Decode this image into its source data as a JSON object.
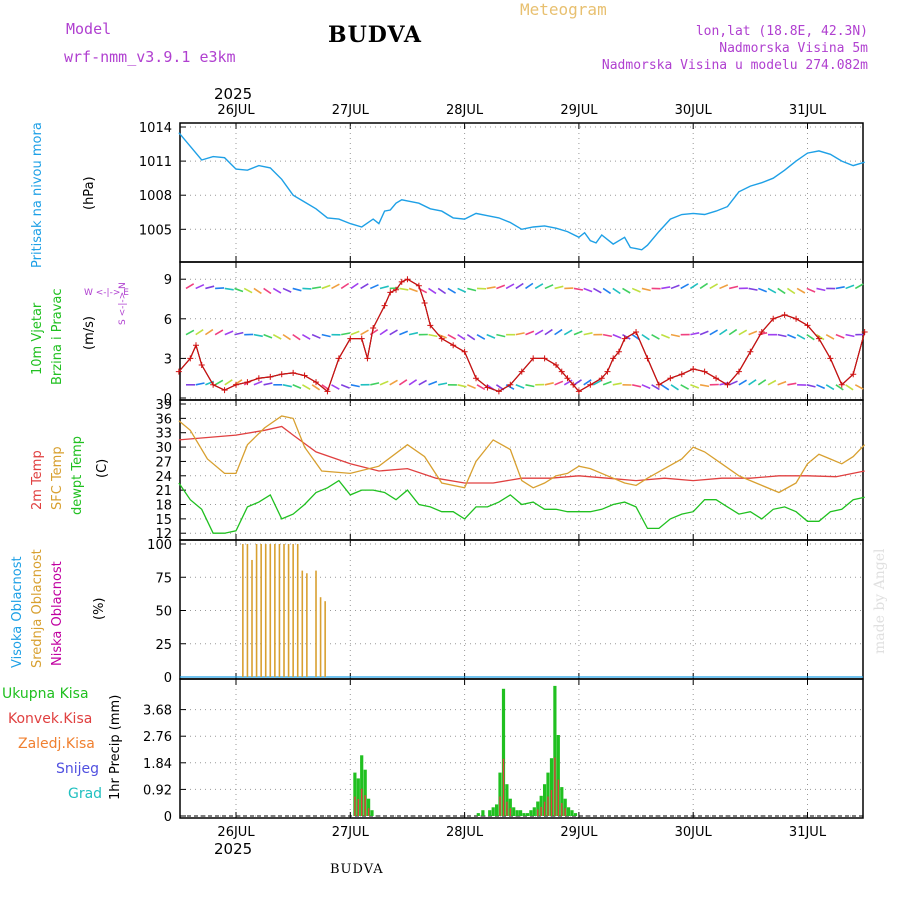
{
  "header": {
    "model_label": "Model",
    "model_name": "wrf-nmm_v3.9.1 e3km",
    "title": "BUDVA",
    "meteogram": "Meteogram",
    "lonlat": "lon,lat (18.8E, 42.3N)",
    "elev": "Nadmorska Visina 5m",
    "elev_model": "Nadmorska Visina u modelu 274.082m",
    "year_top": "2025",
    "year_bottom": "2025",
    "footer_station": "BUDVA",
    "watermark": "made by Angel"
  },
  "colors": {
    "pressure": "#1ea0e6",
    "temp2m": "#e04040",
    "sfc": "#d8a030",
    "dewpt": "#20c020",
    "wind": "#d01010",
    "high": "#1ea0e6",
    "mid": "#d8a030",
    "low": "#c000a0",
    "total": "#20c020",
    "conv": "#e04040",
    "frozen": "#f08030",
    "snow": "#5050e0",
    "grad": "#20c0c0"
  },
  "labels": {
    "p1_a": "Pritisak na nivou mora",
    "p1_b": "(hPa)",
    "p2_a": "10m Vjetar",
    "p2_b": "Brzina i Pravac",
    "p2_c": "(m/s)",
    "p2_compass": "W <-|-> E",
    "p2_compass2": "S <-|-> N",
    "p3_a": "2m Temp",
    "p3_b": "SFC Temp",
    "p3_c": "dewpt Temp",
    "p3_d": "(C)",
    "p4_a": "Visoka Oblacnost",
    "p4_b": "Srednja Oblacnost",
    "p4_c": "Niska Oblacnost",
    "p4_d": "(%)",
    "p5_a": "Ukupna Kisa",
    "p5_b": "Konvek.Kisa",
    "p5_c": "Zaledj.Kisa",
    "p5_d": "Snijeg",
    "p5_e": "Grad",
    "p5_y": "1hr Precip (mm)"
  },
  "chart_data": [
    {
      "type": "line",
      "title": "Pritisak na nivou mora",
      "ylabel": "(hPa)",
      "ylim": [
        1002.3,
        1014
      ],
      "yticks": [
        1005,
        1008,
        1011,
        1014
      ],
      "x_days": [
        "26JUL",
        "27JUL",
        "28JUL",
        "29JUL",
        "30JUL",
        "31JUL"
      ],
      "series": [
        {
          "name": "pressure",
          "x": [
            0.0,
            0.1,
            0.2,
            0.3,
            0.4,
            0.5,
            0.6,
            0.7,
            0.8,
            0.9,
            1.0,
            1.1,
            1.2,
            1.3,
            1.4,
            1.5,
            1.6,
            1.7,
            1.75,
            1.8,
            1.85,
            1.9,
            1.95,
            2.0,
            2.1,
            2.2,
            2.3,
            2.4,
            2.5,
            2.6,
            2.7,
            2.8,
            2.9,
            3.0,
            3.1,
            3.2,
            3.3,
            3.4,
            3.5,
            3.55,
            3.6,
            3.65,
            3.7,
            3.8,
            3.9,
            3.95,
            4.0,
            4.05,
            4.1,
            4.2,
            4.3,
            4.4,
            4.5,
            4.6,
            4.7,
            4.8,
            4.9,
            5.0,
            5.1,
            5.2,
            5.3,
            5.4,
            5.5,
            5.6,
            5.7,
            5.8,
            5.9,
            6.0
          ],
          "values": [
            1013.5,
            1012.3,
            1011.1,
            1011.4,
            1011.3,
            1010.3,
            1010.2,
            1010.6,
            1010.4,
            1009.4,
            1008.0,
            1007.4,
            1006.8,
            1006.0,
            1005.9,
            1005.5,
            1005.2,
            1005.9,
            1005.5,
            1006.6,
            1006.7,
            1007.3,
            1007.6,
            1007.5,
            1007.3,
            1006.8,
            1006.6,
            1006.0,
            1005.9,
            1006.4,
            1006.2,
            1006.0,
            1005.6,
            1005.0,
            1005.2,
            1005.3,
            1005.1,
            1004.8,
            1004.3,
            1004.7,
            1004.0,
            1003.8,
            1004.5,
            1003.7,
            1004.3,
            1003.4,
            1003.3,
            1003.2,
            1003.6,
            1004.8,
            1005.9,
            1006.3,
            1006.4,
            1006.3,
            1006.6,
            1007.0,
            1008.3,
            1008.8,
            1009.1,
            1009.5,
            1010.2,
            1011.0,
            1011.7,
            1011.9,
            1011.6,
            1011.0,
            1010.6,
            1010.9
          ]
        }
      ]
    },
    {
      "type": "line",
      "title": "10m Vjetar Brzina i Pravac",
      "ylabel": "(m/s)",
      "ylim": [
        0,
        10
      ],
      "yticks": [
        0,
        3,
        6,
        9
      ],
      "x_days": [
        "26JUL",
        "27JUL",
        "28JUL",
        "29JUL",
        "30JUL",
        "31JUL"
      ],
      "series": [
        {
          "name": "wind_speed",
          "x": [
            0.0,
            0.1,
            0.15,
            0.2,
            0.3,
            0.4,
            0.5,
            0.6,
            0.7,
            0.8,
            0.9,
            1.0,
            1.1,
            1.2,
            1.3,
            1.4,
            1.5,
            1.6,
            1.65,
            1.7,
            1.8,
            1.85,
            1.9,
            1.95,
            2.0,
            2.1,
            2.15,
            2.2,
            2.3,
            2.4,
            2.5,
            2.6,
            2.7,
            2.8,
            2.9,
            3.0,
            3.1,
            3.2,
            3.3,
            3.35,
            3.4,
            3.45,
            3.5,
            3.6,
            3.7,
            3.75,
            3.8,
            3.85,
            3.9,
            4.0,
            4.1,
            4.2,
            4.3,
            4.4,
            4.5,
            4.6,
            4.7,
            4.8,
            4.9,
            5.0,
            5.1,
            5.2,
            5.3,
            5.4,
            5.5,
            5.6,
            5.7,
            5.8,
            5.9,
            6.0
          ],
          "values": [
            2.0,
            3.0,
            4.0,
            2.5,
            1.0,
            0.6,
            1.0,
            1.2,
            1.5,
            1.6,
            1.8,
            1.9,
            1.7,
            1.2,
            0.5,
            3.0,
            4.5,
            4.5,
            3.0,
            5.3,
            7.0,
            8.0,
            8.2,
            8.8,
            9.0,
            8.5,
            7.2,
            5.5,
            4.5,
            4.0,
            3.5,
            1.5,
            0.8,
            0.5,
            1.0,
            2.0,
            3.0,
            3.0,
            2.5,
            2.0,
            1.5,
            1.0,
            0.5,
            1.0,
            1.5,
            2.0,
            3.0,
            3.5,
            4.5,
            5.0,
            3.0,
            1.0,
            1.5,
            1.8,
            2.2,
            2.0,
            1.5,
            1.0,
            2.0,
            3.5,
            5.0,
            6.0,
            6.3,
            6.0,
            5.5,
            4.5,
            3.0,
            1.0,
            1.8,
            5.0
          ]
        }
      ],
      "arrow_rows": [
        1.0,
        4.8,
        8.3
      ]
    },
    {
      "type": "line",
      "title": "2m Temp / SFC Temp / dewpt Temp",
      "ylabel": "(C)",
      "ylim": [
        11,
        39
      ],
      "yticks": [
        12,
        15,
        18,
        21,
        24,
        27,
        30,
        33,
        36,
        39
      ],
      "x_days": [
        "26JUL",
        "27JUL",
        "28JUL",
        "29JUL",
        "30JUL",
        "31JUL"
      ],
      "series": [
        {
          "name": "2m Temp",
          "x": [
            0.0,
            0.25,
            0.5,
            0.75,
            0.9,
            1.0,
            1.2,
            1.5,
            1.75,
            2.0,
            2.25,
            2.5,
            2.75,
            3.0,
            3.25,
            3.5,
            3.75,
            4.0,
            4.25,
            4.5,
            4.75,
            5.0,
            5.25,
            5.5,
            5.75,
            6.0
          ],
          "values": [
            31.5,
            32.0,
            32.5,
            33.5,
            34.3,
            32.5,
            29.0,
            26.5,
            25.0,
            25.5,
            23.5,
            22.5,
            22.5,
            23.5,
            23.5,
            24.0,
            23.5,
            23.0,
            23.5,
            23.0,
            23.5,
            23.5,
            24.0,
            24.0,
            23.8,
            25.0
          ]
        },
        {
          "name": "SFC Temp",
          "x": [
            0.0,
            0.1,
            0.25,
            0.4,
            0.5,
            0.6,
            0.75,
            0.9,
            1.0,
            1.1,
            1.25,
            1.5,
            1.75,
            2.0,
            2.15,
            2.3,
            2.5,
            2.6,
            2.75,
            2.9,
            3.0,
            3.1,
            3.2,
            3.3,
            3.4,
            3.5,
            3.6,
            3.75,
            3.9,
            4.0,
            4.1,
            4.25,
            4.4,
            4.5,
            4.6,
            4.75,
            4.9,
            5.0,
            5.1,
            5.25,
            5.4,
            5.5,
            5.6,
            5.7,
            5.8,
            5.9,
            6.0
          ],
          "values": [
            35.5,
            33.5,
            27.5,
            24.5,
            24.5,
            30.5,
            34.0,
            36.5,
            36.0,
            30.0,
            25.0,
            24.5,
            26.0,
            30.5,
            28.0,
            22.5,
            21.5,
            27.0,
            31.5,
            29.5,
            23.0,
            21.5,
            22.5,
            24.0,
            24.5,
            26.0,
            25.5,
            24.0,
            22.5,
            22.0,
            23.5,
            25.5,
            27.5,
            30.0,
            29.0,
            26.5,
            24.0,
            23.0,
            22.0,
            20.5,
            22.5,
            26.5,
            28.5,
            27.5,
            26.5,
            28.0,
            30.5
          ]
        },
        {
          "name": "dewpt Temp",
          "x": [
            0.0,
            0.1,
            0.2,
            0.3,
            0.4,
            0.5,
            0.6,
            0.7,
            0.8,
            0.9,
            1.0,
            1.1,
            1.2,
            1.3,
            1.4,
            1.5,
            1.6,
            1.7,
            1.8,
            1.9,
            2.0,
            2.1,
            2.2,
            2.3,
            2.4,
            2.5,
            2.6,
            2.7,
            2.8,
            2.9,
            3.0,
            3.1,
            3.2,
            3.3,
            3.4,
            3.5,
            3.6,
            3.7,
            3.8,
            3.9,
            4.0,
            4.1,
            4.2,
            4.3,
            4.4,
            4.5,
            4.6,
            4.7,
            4.8,
            4.9,
            5.0,
            5.1,
            5.2,
            5.3,
            5.4,
            5.5,
            5.6,
            5.7,
            5.8,
            5.9,
            6.0
          ],
          "values": [
            22.5,
            19.0,
            17.0,
            12.0,
            12.0,
            12.5,
            17.5,
            18.5,
            20.0,
            15.0,
            16.0,
            18.0,
            20.5,
            21.5,
            23.0,
            20.0,
            21.0,
            21.0,
            20.5,
            19.0,
            21.0,
            18.0,
            17.5,
            16.5,
            16.5,
            15.0,
            17.5,
            17.5,
            18.5,
            20.0,
            18.0,
            18.5,
            17.0,
            17.0,
            16.5,
            16.5,
            16.5,
            17.0,
            18.0,
            18.5,
            17.5,
            13.0,
            13.0,
            15.0,
            16.0,
            16.5,
            19.0,
            19.0,
            17.5,
            16.0,
            16.5,
            15.0,
            17.0,
            17.5,
            16.5,
            14.5,
            14.5,
            16.5,
            17.0,
            19.0,
            19.5
          ]
        }
      ]
    },
    {
      "type": "bar",
      "title": "Oblacnost (Visoka / Srednja / Niska)",
      "ylabel": "(%)",
      "ylim": [
        0,
        100
      ],
      "yticks": [
        0,
        25,
        50,
        75,
        100
      ],
      "x_days": [
        "26JUL",
        "27JUL",
        "28JUL",
        "29JUL",
        "30JUL",
        "31JUL"
      ],
      "series": [
        {
          "name": "Srednja Oblacnost",
          "x": [
            0.52,
            0.56,
            0.6,
            0.64,
            0.68,
            0.72,
            0.76,
            0.8,
            0.84,
            0.88,
            0.92,
            0.96,
            1.0,
            1.04,
            1.08,
            1.12,
            1.16,
            1.2,
            1.24,
            1.28,
            1.32,
            1.36,
            1.4,
            1.44,
            1.48,
            1.52,
            1.56,
            1.6,
            1.64,
            1.68,
            1.72,
            1.76,
            1.8,
            1.84,
            1.88,
            1.92,
            1.96,
            2.0,
            2.04,
            2.08,
            2.12,
            2.16,
            2.2,
            2.24,
            2.28,
            2.32,
            2.36,
            2.4,
            2.44,
            2.48,
            2.52,
            2.56,
            2.6,
            2.64,
            2.68,
            2.72,
            2.76,
            2.8,
            2.84,
            2.88,
            2.92,
            2.96,
            3.0,
            3.04,
            3.08,
            3.12,
            3.16,
            3.2,
            3.24,
            3.28,
            3.32,
            3.36,
            3.4,
            3.44,
            3.48,
            3.52,
            3.56,
            3.6,
            3.64,
            3.68,
            3.72,
            3.76,
            3.8,
            3.84,
            3.88,
            3.92,
            3.96,
            4.0,
            4.04,
            4.08,
            4.12,
            4.16,
            4.2,
            4.24,
            4.28,
            4.32,
            4.36,
            4.4,
            4.44,
            4.48,
            4.52,
            4.56,
            4.6,
            4.64,
            4.68,
            4.72,
            4.76,
            4.8,
            4.84,
            4.88,
            4.92,
            4.96,
            5.0,
            5.04,
            5.08,
            5.12,
            5.16,
            5.2,
            5.24,
            5.28,
            5.32,
            5.36,
            5.4,
            5.44,
            5.48,
            5.52,
            5.56,
            5.6,
            5.64,
            5.68,
            5.72,
            5.76,
            5.8,
            5.84,
            5.88,
            5.92,
            5.96
          ],
          "values": [
            0,
            100,
            100,
            88,
            100,
            100,
            100,
            100,
            100,
            100,
            100,
            100,
            100,
            100,
            80,
            78,
            0,
            80,
            60,
            57,
            0,
            0,
            0,
            0,
            0,
            0,
            0,
            0,
            0,
            0,
            0,
            0,
            0,
            0,
            0,
            0,
            0,
            0,
            0,
            0,
            0,
            0,
            0,
            0,
            0,
            0,
            0,
            0,
            0,
            0,
            0,
            0,
            0,
            0,
            0,
            0,
            0,
            0,
            0,
            0,
            0,
            0,
            0,
            0,
            0,
            0,
            0,
            0,
            0,
            0,
            0,
            0,
            0,
            0,
            0,
            0,
            0,
            0,
            0,
            0,
            0,
            0,
            0,
            0,
            0,
            0,
            0,
            0,
            0,
            0,
            0,
            0,
            0,
            0,
            0,
            0,
            0,
            0,
            0,
            0,
            0,
            0,
            0,
            0,
            0,
            0,
            0,
            0,
            0,
            0,
            0,
            0,
            0,
            0,
            0,
            0,
            0,
            0,
            0,
            0,
            0,
            0,
            0,
            0,
            0,
            0,
            0,
            0,
            0,
            0,
            0,
            0,
            0,
            0,
            0,
            0,
            0
          ]
        }
      ]
    },
    {
      "type": "bar",
      "title": "1hr Precip",
      "ylabel": "1hr Precip (mm)",
      "ylim": [
        0,
        4.6
      ],
      "yticks": [
        0,
        0.92,
        1.84,
        2.76,
        3.68
      ],
      "x_days": [
        "26JUL",
        "27JUL",
        "28JUL",
        "29JUL",
        "30JUL",
        "31JUL"
      ],
      "series": [
        {
          "name": "Ukupna Kisa",
          "x": [
            1.54,
            1.57,
            1.6,
            1.63,
            1.66,
            1.69,
            1.72,
            1.75,
            1.78,
            1.81,
            2.62,
            2.66,
            2.72,
            2.75,
            2.78,
            2.81,
            2.84,
            2.87,
            2.9,
            2.93,
            2.96,
            2.99,
            3.02,
            3.05,
            3.08,
            3.11,
            3.14,
            3.17,
            3.2,
            3.23,
            3.26,
            3.29,
            3.32,
            3.35,
            3.38,
            3.41,
            3.44,
            3.47,
            3.5,
            3.53,
            3.56,
            3.59
          ],
          "values": [
            1.5,
            1.3,
            2.1,
            1.6,
            0.6,
            0.2,
            0.0,
            0.0,
            0.0,
            0.0,
            0.1,
            0.2,
            0.2,
            0.3,
            0.4,
            1.5,
            4.4,
            1.1,
            0.6,
            0.3,
            0.2,
            0.2,
            0.1,
            0.1,
            0.2,
            0.3,
            0.5,
            0.7,
            1.1,
            1.5,
            2.0,
            4.5,
            2.8,
            1.0,
            0.6,
            0.3,
            0.2,
            0.1,
            0.0,
            0.0,
            0.0,
            0.0
          ]
        }
      ]
    }
  ]
}
